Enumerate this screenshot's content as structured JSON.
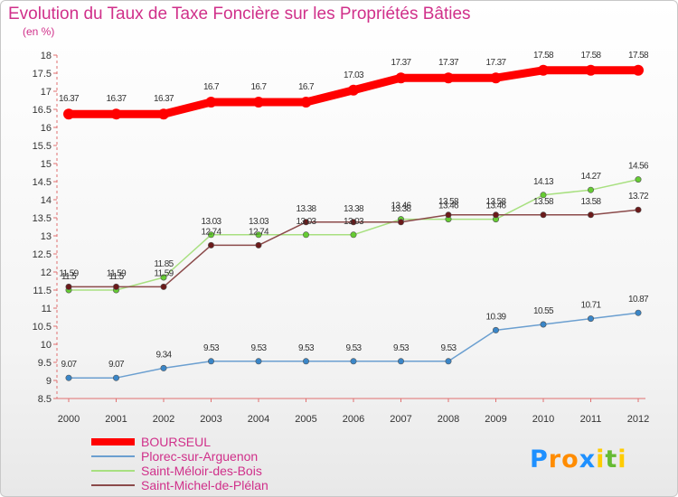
{
  "title": "Evolution du Taux de Taxe Foncière sur les Propriétés Bâties",
  "unit_label": "(en %)",
  "logo": {
    "text": "Proxiti",
    "letters": [
      "P",
      "r",
      "o",
      "x",
      "i",
      "t",
      "i"
    ],
    "colors": [
      "#1e90ff",
      "#ff8c00",
      "#ff8c00",
      "#1e90ff",
      "#ffcc00",
      "#66bb33",
      "#ffcc00"
    ]
  },
  "chart_data": {
    "type": "line",
    "title": "Evolution du Taux de Taxe Foncière sur les Propriétés Bâties",
    "ylabel": "(en %)",
    "xlabel": "",
    "ylim": [
      8.5,
      18
    ],
    "yticks": [
      "8.5",
      "9",
      "9.5",
      "10",
      "10.5",
      "11",
      "11.5",
      "12",
      "12.5",
      "13",
      "13.5",
      "14",
      "14.5",
      "15",
      "15.5",
      "16",
      "16.5",
      "17",
      "17.5",
      "18"
    ],
    "x": [
      "2000",
      "2001",
      "2002",
      "2003",
      "2004",
      "2005",
      "2006",
      "2007",
      "2008",
      "2009",
      "2010",
      "2011",
      "2012"
    ],
    "series": [
      {
        "name": "BOURSEUL",
        "color": "#ff0000",
        "values": [
          16.37,
          16.37,
          16.37,
          16.7,
          16.7,
          16.7,
          17.03,
          17.37,
          17.37,
          17.37,
          17.58,
          17.58,
          17.58
        ],
        "labels": [
          "16.37",
          "16.37",
          "16.37",
          "16.7",
          "16.7",
          "16.7",
          "17.03",
          "17.37",
          "17.37",
          "17.37",
          "17.58",
          "17.58",
          "17.58"
        ]
      },
      {
        "name": "Plorec-sur-Arguenon",
        "color": "#6b9fd0",
        "marker": "#3a86c8",
        "values": [
          9.07,
          9.07,
          9.34,
          9.53,
          9.53,
          9.53,
          9.53,
          9.53,
          9.53,
          10.39,
          10.55,
          10.71,
          10.87
        ],
        "labels": [
          "9.07",
          "9.07",
          "9.34",
          "9.53",
          "9.53",
          "9.53",
          "9.53",
          "9.53",
          "9.53",
          "10.39",
          "10.55",
          "10.71",
          "10.87"
        ]
      },
      {
        "name": "Saint-Méloir-des-Bois",
        "color": "#a8e080",
        "marker": "#66cc33",
        "values": [
          11.5,
          11.5,
          11.85,
          13.03,
          13.03,
          13.03,
          13.03,
          13.46,
          13.46,
          13.46,
          14.13,
          14.27,
          14.56
        ],
        "labels": [
          "11.5",
          "11.5",
          "11.85",
          "13.03",
          "13.03",
          "13.03",
          "13.03",
          "13.46",
          "13.46",
          "13.46",
          "14.13",
          "14.27",
          "14.56"
        ]
      },
      {
        "name": "Saint-Michel-de-Plélan",
        "color": "#8b4a4a",
        "marker": "#6b1a1a",
        "values": [
          11.59,
          11.59,
          11.59,
          12.74,
          12.74,
          13.38,
          13.38,
          13.38,
          13.58,
          13.58,
          13.58,
          13.58,
          13.72
        ],
        "labels": [
          "11.59",
          "11.59",
          "11.59",
          "12.74",
          "12.74",
          "13.38",
          "13.38",
          "13.38",
          "13.58",
          "13.58",
          "13.58",
          "13.58",
          "13.72"
        ]
      }
    ],
    "grid": false,
    "legend_position": "bottom-left"
  }
}
